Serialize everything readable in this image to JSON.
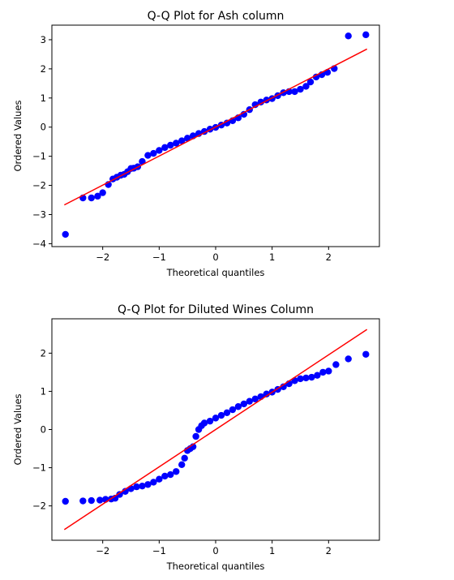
{
  "chart_data": [
    {
      "type": "scatter",
      "title": "Q-Q Plot for Ash column",
      "xlabel": "Theoretical quantiles",
      "ylabel": "Ordered Values",
      "xlim": [
        -2.9,
        2.9
      ],
      "ylim": [
        -4.1,
        3.5
      ],
      "xticks": [
        -2,
        -1,
        0,
        1,
        2
      ],
      "yticks": [
        -4,
        -3,
        -2,
        -1,
        0,
        1,
        2,
        3
      ],
      "grid": false,
      "marker_color": "#0000ff",
      "line_color": "#ff0000",
      "fit_line": {
        "x": [
          -2.68,
          2.68
        ],
        "y": [
          -2.67,
          2.68
        ]
      },
      "series": [
        {
          "x": [
            -2.66,
            -2.35,
            -2.2,
            -2.09,
            -2.0,
            -1.9,
            -1.82,
            -1.75,
            -1.68,
            -1.62,
            -1.56,
            -1.5,
            -1.45,
            -1.38,
            -1.3,
            -1.2,
            -1.1,
            -1.0,
            -0.9,
            -0.8,
            -0.7,
            -0.6,
            -0.5,
            -0.4,
            -0.3,
            -0.2,
            -0.1,
            0.0,
            0.1,
            0.2,
            0.3,
            0.4,
            0.5,
            0.6,
            0.7,
            0.8,
            0.9,
            1.0,
            1.1,
            1.2,
            1.3,
            1.4,
            1.5,
            1.6,
            1.68,
            1.78,
            1.88,
            1.98,
            2.1,
            2.35,
            2.66
          ],
          "y": [
            -3.68,
            -2.43,
            -2.43,
            -2.37,
            -2.25,
            -1.97,
            -1.78,
            -1.72,
            -1.65,
            -1.62,
            -1.53,
            -1.42,
            -1.41,
            -1.36,
            -1.18,
            -0.97,
            -0.9,
            -0.8,
            -0.7,
            -0.62,
            -0.55,
            -0.47,
            -0.38,
            -0.3,
            -0.22,
            -0.15,
            -0.07,
            -0.01,
            0.07,
            0.14,
            0.22,
            0.32,
            0.44,
            0.6,
            0.77,
            0.86,
            0.93,
            0.98,
            1.08,
            1.18,
            1.22,
            1.22,
            1.3,
            1.4,
            1.55,
            1.72,
            1.8,
            1.88,
            2.01,
            3.13,
            3.17
          ]
        }
      ]
    },
    {
      "type": "scatter",
      "title": "Q-Q Plot for Diluted Wines Column",
      "xlabel": "Theoretical quantiles",
      "ylabel": "Ordered Values",
      "xlim": [
        -2.9,
        2.9
      ],
      "ylim": [
        -2.9,
        2.9
      ],
      "xticks": [
        -2,
        -1,
        0,
        1,
        2
      ],
      "yticks": [
        -2,
        -1,
        0,
        1,
        2
      ],
      "grid": false,
      "marker_color": "#0000ff",
      "line_color": "#ff0000",
      "fit_line": {
        "x": [
          -2.68,
          2.68
        ],
        "y": [
          -2.62,
          2.62
        ]
      },
      "series": [
        {
          "x": [
            -2.66,
            -2.35,
            -2.2,
            -2.05,
            -1.95,
            -1.85,
            -1.78,
            -1.7,
            -1.6,
            -1.5,
            -1.4,
            -1.3,
            -1.2,
            -1.1,
            -1.0,
            -0.9,
            -0.8,
            -0.7,
            -0.6,
            -0.55,
            -0.5,
            -0.45,
            -0.4,
            -0.35,
            -0.3,
            -0.25,
            -0.2,
            -0.1,
            0.0,
            0.1,
            0.2,
            0.3,
            0.4,
            0.5,
            0.6,
            0.7,
            0.8,
            0.9,
            1.0,
            1.1,
            1.2,
            1.3,
            1.4,
            1.5,
            1.6,
            1.7,
            1.8,
            1.9,
            2.0,
            2.13,
            2.35,
            2.66
          ],
          "y": [
            -1.88,
            -1.87,
            -1.86,
            -1.85,
            -1.83,
            -1.82,
            -1.8,
            -1.7,
            -1.62,
            -1.55,
            -1.5,
            -1.48,
            -1.44,
            -1.38,
            -1.3,
            -1.22,
            -1.18,
            -1.1,
            -0.92,
            -0.75,
            -0.55,
            -0.5,
            -0.45,
            -0.18,
            0.0,
            0.1,
            0.17,
            0.22,
            0.3,
            0.37,
            0.44,
            0.52,
            0.6,
            0.67,
            0.74,
            0.8,
            0.86,
            0.93,
            0.98,
            1.05,
            1.12,
            1.2,
            1.28,
            1.33,
            1.35,
            1.37,
            1.42,
            1.5,
            1.53,
            1.7,
            1.85,
            1.97
          ]
        }
      ]
    }
  ]
}
